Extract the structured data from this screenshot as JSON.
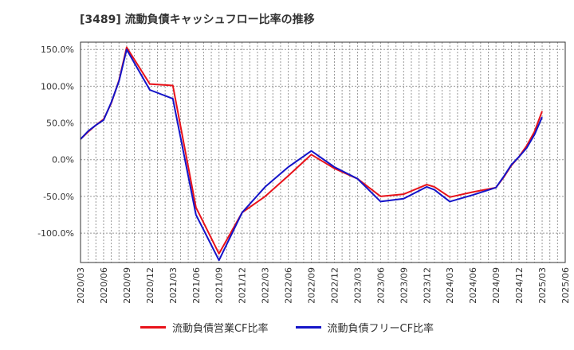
{
  "chart_data": {
    "type": "line",
    "title": "[3489]  流動負債キャッシュフロー比率の推移",
    "ylim": [
      -140,
      160
    ],
    "yticks": [
      150,
      100,
      50,
      0,
      -50,
      -100
    ],
    "ytick_labels": [
      "150.0%",
      "100.0%",
      "50.0%",
      "0.0%",
      "-50.0%",
      "-100.0%"
    ],
    "xticks": [
      "2020/03",
      "2020/06",
      "2020/09",
      "2020/12",
      "2021/03",
      "2021/06",
      "2021/09",
      "2021/12",
      "2022/03",
      "2022/06",
      "2022/09",
      "2022/12",
      "2023/03",
      "2023/06",
      "2023/09",
      "2023/12",
      "2024/03",
      "2024/06",
      "2024/09",
      "2024/12",
      "2025/03",
      "2025/06"
    ],
    "grid": true,
    "legend_position": "bottom",
    "x": [
      "2020/03",
      "2020/04",
      "2020/05",
      "2020/06",
      "2020/07",
      "2020/08",
      "2020/09",
      "2020/12",
      "2021/03",
      "2021/06",
      "2021/09",
      "2021/12",
      "2022/03",
      "2022/06",
      "2022/09",
      "2022/12",
      "2023/03",
      "2023/06",
      "2023/09",
      "2023/12",
      "2024/01",
      "2024/03",
      "2024/06",
      "2024/09",
      "2024/10",
      "2024/11",
      "2024/12",
      "2025/01",
      "2025/02",
      "2025/03"
    ],
    "series": [
      {
        "name": "流動負債営業CF比率",
        "color": "#e8121a",
        "values": [
          28,
          38,
          47,
          55,
          77,
          108,
          153,
          103,
          101,
          -65,
          -128,
          -72,
          -50,
          -22,
          7,
          -12,
          -26,
          -50,
          -47,
          -34,
          -37,
          -51,
          -44,
          -38,
          -24,
          -8,
          4,
          19,
          38,
          66
        ]
      },
      {
        "name": "流動負債フリーCF比率",
        "color": "#1414c8",
        "values": [
          28,
          39,
          47,
          54,
          78,
          107,
          150,
          95,
          83,
          -75,
          -137,
          -72,
          -37,
          -10,
          12,
          -10,
          -26,
          -57,
          -53,
          -37,
          -41,
          -57,
          -48,
          -38,
          -23,
          -7,
          4,
          16,
          34,
          58
        ]
      }
    ]
  }
}
